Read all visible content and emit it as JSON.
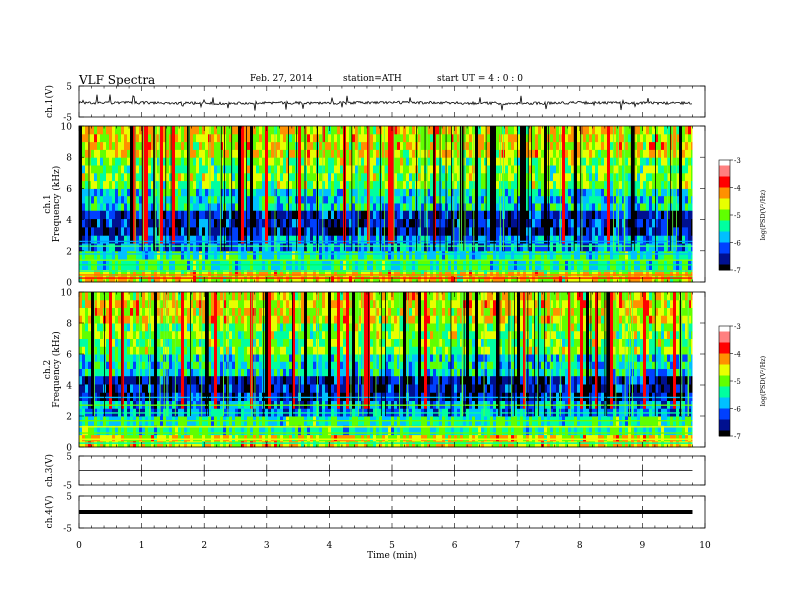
{
  "header": {
    "title": "VLF  Spectra",
    "date": "Feb. 27, 2014",
    "station": "station=ATH",
    "start": "start  UT  =   4  : 0  : 0"
  },
  "chart_data": [
    {
      "type": "line",
      "panel": "ch1-waveform",
      "ylabel": "ch.1(V)",
      "ylim": [
        -5,
        5
      ],
      "yticks": [
        "5",
        "-5"
      ],
      "x": [
        0,
        1,
        2,
        3,
        4,
        5,
        6,
        7,
        8,
        9,
        9.8
      ],
      "series": [
        {
          "values": [
            -0.5,
            -0.4,
            -0.6,
            -0.4,
            -0.5,
            -0.3,
            -0.5,
            -0.6,
            -0.4,
            -0.5,
            -0.5
          ]
        }
      ]
    },
    {
      "type": "heatmap",
      "panel": "ch1-spectrogram",
      "ylabel": "ch.1",
      "ylabel2": "Frequency  (kHz)",
      "ylim": [
        0,
        10
      ],
      "yticks": [
        "0",
        "2",
        "4",
        "6",
        "8",
        "10"
      ],
      "colorbar": {
        "label": "log(PSD(V²/Hz)",
        "ticks": [
          "-3",
          "-4",
          "-5",
          "-6",
          "-7"
        ],
        "range": [
          -7,
          -3
        ]
      }
    },
    {
      "type": "heatmap",
      "panel": "ch2-spectrogram",
      "ylabel": "ch.2",
      "ylabel2": "Frequency  (kHz)",
      "ylim": [
        0,
        10
      ],
      "yticks": [
        "0",
        "2",
        "4",
        "6",
        "8",
        "10"
      ],
      "colorbar": {
        "label": "log(PSD(V²/Hz)",
        "ticks": [
          "-3",
          "-4",
          "-5",
          "-6",
          "-7"
        ],
        "range": [
          -7,
          -3
        ]
      }
    },
    {
      "type": "line",
      "panel": "ch3-waveform",
      "ylabel": "ch.3(V)",
      "ylim": [
        -5,
        5
      ],
      "yticks": [
        "5",
        "-5"
      ],
      "x": [
        0,
        9.8
      ],
      "series": [
        {
          "values": [
            0,
            0
          ]
        }
      ]
    },
    {
      "type": "line",
      "panel": "ch4-waveform",
      "ylabel": "ch.4(V)",
      "ylim": [
        -5,
        5
      ],
      "yticks": [
        "5",
        "-5"
      ],
      "x": [
        0,
        9.8
      ],
      "series": [
        {
          "values": [
            0,
            0
          ]
        }
      ]
    }
  ],
  "xaxis": {
    "label": "Time  (min)",
    "ticks": [
      "0",
      "1",
      "2",
      "3",
      "4",
      "5",
      "6",
      "7",
      "8",
      "9",
      "10"
    ],
    "range": [
      0,
      10
    ]
  },
  "colors": {
    "colormap": [
      "#000000",
      "#001090",
      "#0040ff",
      "#00c0ff",
      "#00ffa0",
      "#60ff00",
      "#e8ff00",
      "#ff9000",
      "#ff0000",
      "#ff8080",
      "#ffffff"
    ]
  }
}
